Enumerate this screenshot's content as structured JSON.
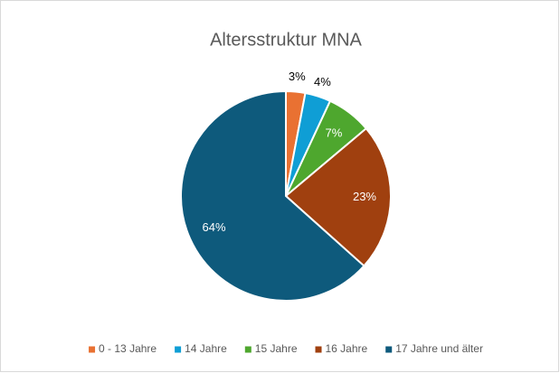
{
  "chart_data": {
    "type": "pie",
    "title": "Altersstruktur MNA",
    "categories": [
      "0 - 13 Jahre",
      "14 Jahre",
      "15 Jahre",
      "16 Jahre",
      "17 Jahre und älter"
    ],
    "values": [
      3,
      4,
      7,
      23,
      64
    ],
    "value_labels": [
      "3%",
      "4%",
      "7%",
      "23%",
      "64%"
    ],
    "colors": [
      "#e97132",
      "#0f9ed5",
      "#4ea72e",
      "#a0400f",
      "#0e5a7c"
    ],
    "legend": "bottom"
  }
}
